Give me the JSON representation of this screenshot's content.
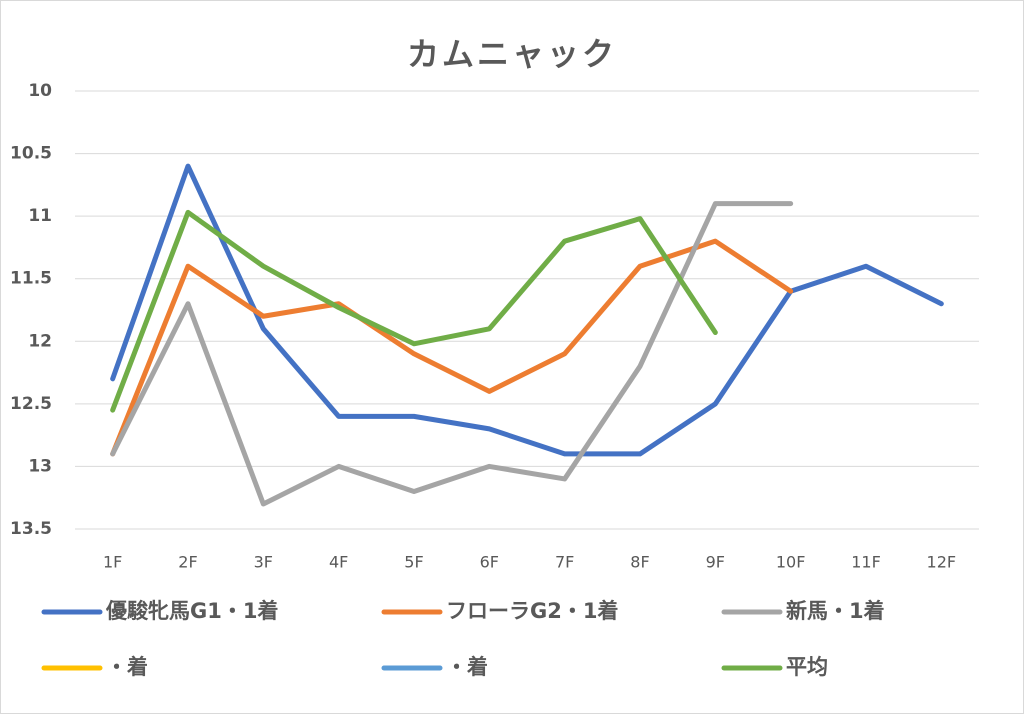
{
  "chart_data": {
    "type": "line",
    "title": "カムニャック",
    "categories": [
      "1F",
      "2F",
      "3F",
      "4F",
      "5F",
      "6F",
      "7F",
      "8F",
      "9F",
      "10F",
      "11F",
      "12F"
    ],
    "series": [
      {
        "name": "優駿牝馬G1・1着",
        "color": "#4472c4",
        "values": [
          12.3,
          10.6,
          11.9,
          12.6,
          12.6,
          12.7,
          12.9,
          12.9,
          12.5,
          11.6,
          11.4,
          11.7
        ]
      },
      {
        "name": "フローラG2・1着",
        "color": "#ed7d31",
        "values": [
          12.9,
          11.4,
          11.8,
          11.7,
          12.1,
          12.4,
          12.1,
          11.4,
          11.2,
          11.6,
          null,
          null
        ]
      },
      {
        "name": "新馬・1着",
        "color": "#a5a5a5",
        "values": [
          12.9,
          11.7,
          13.3,
          13.0,
          13.2,
          13.0,
          13.1,
          12.2,
          10.9,
          10.9,
          null,
          null
        ]
      },
      {
        "name": "・着",
        "color": "#ffc000",
        "values": [
          null,
          null,
          null,
          null,
          null,
          null,
          null,
          null,
          null,
          null,
          null,
          null
        ]
      },
      {
        "name": "・着",
        "color": "#5b9bd5",
        "values": [
          null,
          null,
          null,
          null,
          null,
          null,
          null,
          null,
          null,
          null,
          null,
          null
        ]
      },
      {
        "name": "平均",
        "color": "#70ad47",
        "values": [
          12.55,
          10.97,
          11.4,
          11.73,
          12.02,
          11.9,
          11.2,
          11.02,
          11.93,
          null,
          null,
          null
        ]
      }
    ],
    "ylim": [
      10,
      13.5
    ],
    "y_reversed": true,
    "yticks": [
      10,
      10.5,
      11,
      11.5,
      12,
      12.5,
      13,
      13.5
    ],
    "grid": true
  }
}
